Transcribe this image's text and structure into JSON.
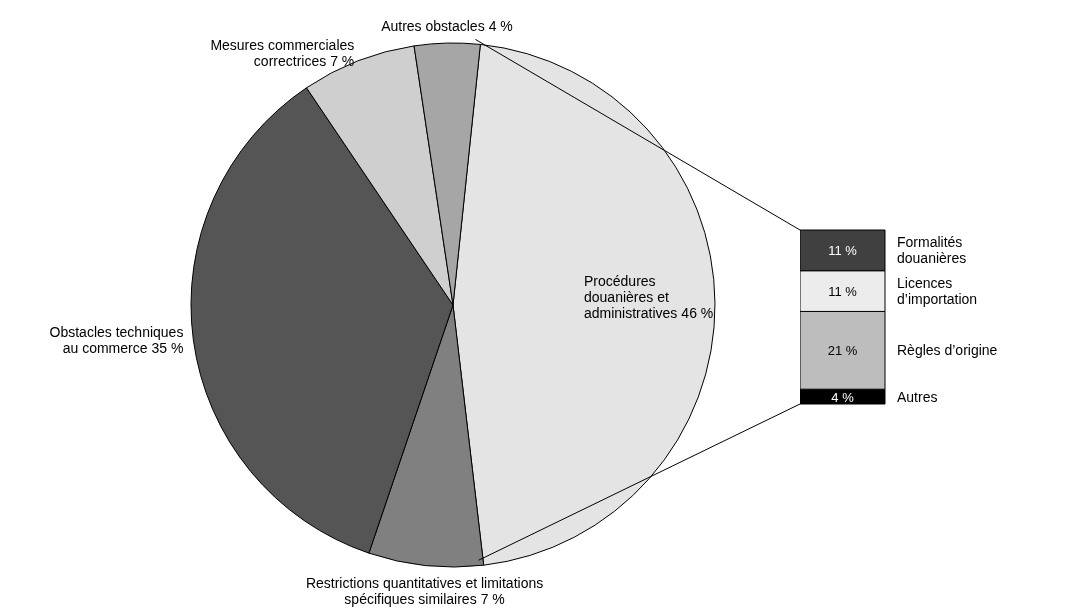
{
  "chart_data": [
    {
      "type": "pie",
      "categories": [
        "Procédures douanières et administratives",
        "Restrictions quantitatives et limitations spécifiques similaires",
        "Obstacles techniques au commerce",
        "Mesures commerciales correctrices",
        "Autres obstacles"
      ],
      "values": [
        46,
        7,
        35,
        7,
        4
      ],
      "value_labels": [
        "46 %",
        "7 %",
        "35 %",
        "7 %",
        "4 %"
      ],
      "colors": [
        "#e4e4e4",
        "#808080",
        "#555555",
        "#cfcfcf",
        "#a6a6a6"
      ]
    },
    {
      "type": "bar",
      "stacked": true,
      "categories": [
        null
      ],
      "series": [
        {
          "name": "Autres",
          "color": "#000000",
          "values": [
            4
          ],
          "value_labels": [
            "4 %"
          ]
        },
        {
          "name": "Règles d’origine",
          "color": "#bdbdbd",
          "values": [
            21
          ],
          "value_labels": [
            "21 %"
          ]
        },
        {
          "name": "Licences d’importation",
          "color": "#ececec",
          "values": [
            11
          ],
          "value_labels": [
            "11 %"
          ]
        },
        {
          "name": "Formalités douanières",
          "color": "#404040",
          "values": [
            11
          ],
          "value_labels": [
            "11 %"
          ]
        }
      ]
    }
  ]
}
